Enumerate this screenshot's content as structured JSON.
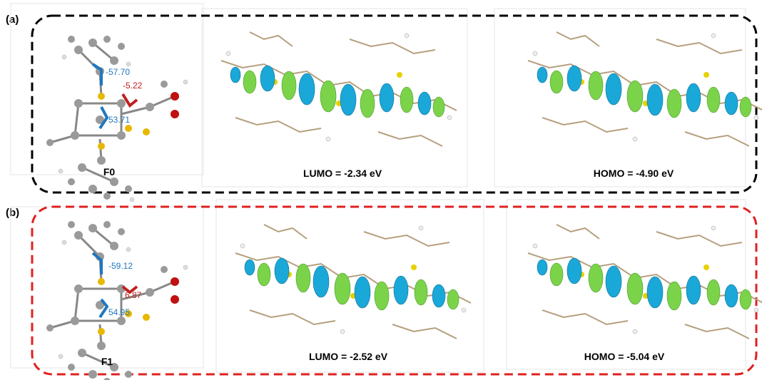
{
  "panels": [
    {
      "label": "(a)",
      "molecule": {
        "name": "F0",
        "angles": [
          "-57.70",
          "-5.22",
          "53.71"
        ]
      },
      "orbitals": [
        "LUMO = -2.34 eV",
        "HOMO = -4.90 eV"
      ]
    },
    {
      "label": "(b)",
      "molecule": {
        "name": "F1",
        "angles": [
          "-59.12",
          "6.87",
          "54.95"
        ]
      },
      "orbitals": [
        "LUMO = -2.52 eV",
        "HOMO = -5.04 eV"
      ]
    }
  ]
}
